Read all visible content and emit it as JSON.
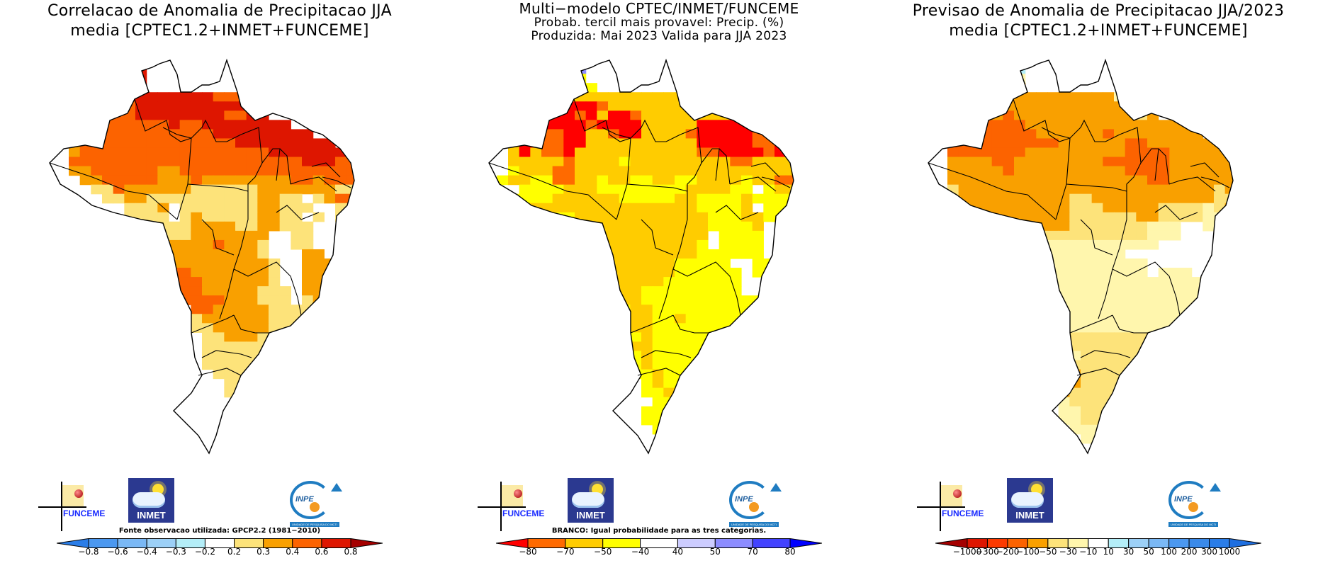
{
  "panels": [
    {
      "id": "correlation",
      "title_lines": [
        "Correlacao de Anomalia de Precipitacao JJA",
        "media [CPTEC1.2+INMET+FUNCEME]"
      ],
      "note": "Fonte observacao utilizada: GPCP2.2 (1981−2010)",
      "colorbar": {
        "ticks": [
          "−0.8",
          "−0.6",
          "−0.4",
          "−0.3",
          "−0.2",
          "0.2",
          "0.3",
          "0.4",
          "0.6",
          "0.8"
        ],
        "colors": [
          "#2a7de8",
          "#4b98f0",
          "#7ab8f5",
          "#9cd0f7",
          "#b4eef8",
          "#ffffff",
          "#fde37a",
          "#f9a000",
          "#fc6300",
          "#de1600",
          "#a50000"
        ]
      },
      "grid_palette": {
        "0": "#ffffff",
        "1": "#fde37a",
        "2": "#f9a000",
        "3": "#fc6300",
        "4": "#de1600",
        "5": "#b4eef8"
      },
      "grid_rows": [
        "000000000000000000000000000000",
        "000000044400000000000000000000",
        "000000344400000000000000000000",
        "000000344400000000000000000000",
        "000000334400000000000000000000",
        "000221334444444433300000000000",
        "000221333444444444430000000000",
        "000223333444444443344000000000",
        "000233333333433444444440000000",
        "000233333333333344444444400000",
        "000233333333333333444444444000",
        "000233333333333333333444444440",
        "000333333333333333333333444333",
        "000223333332233333333333333333",
        "000022333332223222222223323332",
        "000001132222221111112222222113",
        "050000112211111111112211012332",
        "500000001112011111112211100111",
        "000000001111012111112211010110",
        "000000000111112222112211100000",
        "000000000011112222222001100000",
        "000000000111222232221001100000",
        "000000000011222222221000220000",
        "000000000012222222222100222000",
        "000000000002332222222100222200",
        "000000000000333222222100223200",
        "000000000000333222221110222200",
        "000000000000033332221110122200",
        "000000000000003322222111112210",
        "000000000000001222222111110000",
        "000000000000001122222111110000",
        "000000000000000112221111110000",
        "000000000000000111111111100000",
        "000000000000000111111111000000",
        "000000000000000111111111000000",
        "000000000000000011111110000000",
        "000000000000000001111100000000",
        "000000000000000001122200000000",
        "000000000000000000223300000000",
        "000000000000000000223300000000",
        "000000000000000001223300000000",
        "000000000000000001223300000000",
        "000000000000000001122300000000",
        "000000000000000000112200000000",
        "000000000000000000022000000000",
        "000000000000000000002000000000"
      ]
    },
    {
      "id": "probability",
      "title_lines": [
        "Multi−modelo CPTEC/INMET/FUNCEME",
        "Probab. tercil mais provavel: Precip. (%)",
        "Produzida: Mai 2023  Valida para JJA 2023"
      ],
      "note": "BRANCO: Igual probabilidade para as tres categorias.",
      "colorbar": {
        "ticks": [
          "−80",
          "−70",
          "−50",
          "−40",
          "40",
          "50",
          "70",
          "80"
        ],
        "colors": [
          "#ff0000",
          "#ff6a00",
          "#ffcc00",
          "#ffff00",
          "#ffffff",
          "#ccccff",
          "#8c8cff",
          "#4242ff",
          "#0000ff"
        ]
      },
      "grid_palette": {
        "0": "#ffffff",
        "1": "#ffff00",
        "2": "#ffcc00",
        "3": "#ff6a00",
        "4": "#ff0000",
        "5": "#ccccff",
        "6": "#8c8cff"
      },
      "grid_rows": [
        "000000000000000000000000000000",
        "000000055600000000000000000000",
        "000000105600000000000000000000",
        "000000110100000000000000000000",
        "000000112110000000000000000000",
        "000434221222222222211100000000",
        "000442234443222222222200000000",
        "000442344342443222222222000000",
        "000344444434444222224444440000",
        "000244334422344222234444433000",
        "000244334422222222224444433430",
        "000242334222222222223344443443",
        "000222223222212222222223322222",
        "000122233222222222222222222222",
        "001221133221221122112222122332",
        "000011112221111111122221101222",
        "000111122222211111221111211112",
        "000122222222222222221111201110",
        "000000011222222222222111221110",
        "000000002222222222222111120000",
        "000000002222222222222011110000",
        "000000000222222222221011110000",
        "000000000022222222221111110000",
        "000000000012222222111110011000",
        "000000000002222222111111011000",
        "000000000000222221111111001000",
        "000000000000222111111111001000",
        "000000000000122111111111110000",
        "000000000000112211111111100000",
        "000000000000112211211111100000",
        "000000000000112211111111000000",
        "000000000000111211111111000000",
        "000000000000112211111111000000",
        "000000000000011211111100000000",
        "000000000000001211111100000000",
        "000000000000001121111000000000",
        "000000000000000121121000000000",
        "000000000000000112111000000000",
        "000000000000000011111000000000",
        "000000000000000111111100000000",
        "000000000000000111111100000000",
        "000000000000000011111000000000",
        "000000000000000001111000000000",
        "000000000000000000110000000000",
        "000000000000000000000000000000",
        "000000000000000000000000000000"
      ]
    },
    {
      "id": "anomaly",
      "title_lines": [
        "Previsao de Anomalia de Precipitacao JJA/2023",
        "media [CPTEC1.2+INMET+FUNCEME]"
      ],
      "note": "",
      "colorbar": {
        "ticks": [
          "−1000",
          "−300",
          "−200",
          "−100",
          "−50",
          "−30",
          "−10",
          "10",
          "30",
          "50",
          "100",
          "200",
          "300",
          "1000"
        ],
        "colors": [
          "#a50000",
          "#de1600",
          "#fc3a00",
          "#fc6300",
          "#f9a000",
          "#fde37a",
          "#fff6ad",
          "#ffffff",
          "#b4eef8",
          "#9cd0f7",
          "#7ab8f5",
          "#4b98f0",
          "#3a8aea",
          "#2a7de8",
          "#1f6fe0"
        ]
      },
      "grid_palette": {
        "0": "#ffffff",
        "1": "#fff6ad",
        "2": "#fde37a",
        "3": "#f9a000",
        "4": "#fc6300",
        "5": "#b4eef8",
        "6": "#7ab8f5"
      },
      "grid_rows": [
        "000000000000000000000000000000",
        "000000066600000000000000000000",
        "000000150500000000000000000000",
        "000000111100000000000000000000",
        "000000133300000000000000000000",
        "000444333333333333111000000000",
        "000443333333333333322000000000",
        "000443334333333333332300000000",
        "000444444433333333333333300000",
        "000444444443333334333333330000",
        "000444444444433333344333333300",
        "000444444433333333344443333330",
        "000333344333333334444443333334",
        "000333334333333333344443333334",
        "000333333333333333333443333333",
        "000233333333333333333333333233",
        "002233333333332233333333333223",
        "022223333333332223333322221233",
        "012222333333332222223322221122",
        "001222223333332222222111001100",
        "000000011222222222222111000110",
        "000000001121111111111100000010",
        "000000000011111111100000000010",
        "000000000011111111111000000110",
        "000000000011111111111011100110",
        "000000000001111111111111110010",
        "000000000000111111111111111010",
        "000000000000111111111111110000",
        "000000000000111111111111110000",
        "000000000000111111111111100000",
        "000000000000111111111111100000",
        "000000000000112222222221100000",
        "000000000000112222222221000000",
        "000000000000011222222220000000",
        "000000000000002222222220000000",
        "000000000000003222222200000000",
        "000000000000003222222200000000",
        "000000000000032222222000000000",
        "000000000000012222222000000000",
        "000000000000011222221000000000",
        "000000000000011222221000000000",
        "000000000000001112221000000000",
        "000000000000000111210000000000",
        "000000000000000011100000000000",
        "000000000000000000000000000000",
        "000000000000000000000000000000"
      ]
    }
  ],
  "logos": {
    "funceme": "FUNCEME",
    "inmet": "INMET",
    "inpe": "INPE",
    "inpe_sub": "UNIDADE DE PESQUISA DO MCTI"
  }
}
